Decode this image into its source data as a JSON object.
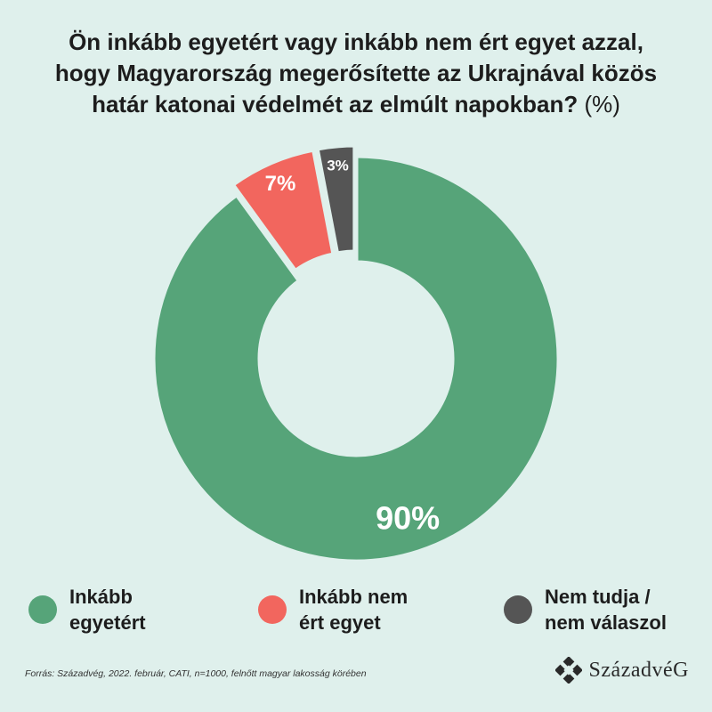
{
  "title": {
    "line1": "Ön inkább egyetért vagy inkább nem ért egyet azzal,",
    "line2": "hogy Magyarország megerősítette az Ukrajnával közös",
    "line3": "határ katonai védelmét az elmúlt napokban?",
    "unit": "(%)"
  },
  "chart_data": {
    "type": "pie",
    "categories": [
      "Inkább egyetért",
      "Inkább nem ért egyet",
      "Nem tudja / nem válaszol"
    ],
    "values": [
      90,
      7,
      3
    ],
    "labels": [
      "90%",
      "7%",
      "3%"
    ],
    "colors": [
      "#56a479",
      "#f2665e",
      "#555555"
    ],
    "legend_placement": "bottom"
  },
  "legend": {
    "items": [
      {
        "line1": "Inkább",
        "line2": "egyetért",
        "color": "#56a479"
      },
      {
        "line1": "Inkább nem",
        "line2": "ért egyet",
        "color": "#f2665e"
      },
      {
        "line1": "Nem tudja /",
        "line2": "nem válaszol",
        "color": "#555555"
      }
    ]
  },
  "footer": {
    "source": "Forrás: Századvég, 2022. február, CATI, n=1000, felnőtt magyar lakosság körében",
    "brand": "SzázadvéG"
  },
  "colors": {
    "background": "#dff0ec",
    "agree": "#56a479",
    "disagree": "#f2665e",
    "unknown": "#555555"
  }
}
